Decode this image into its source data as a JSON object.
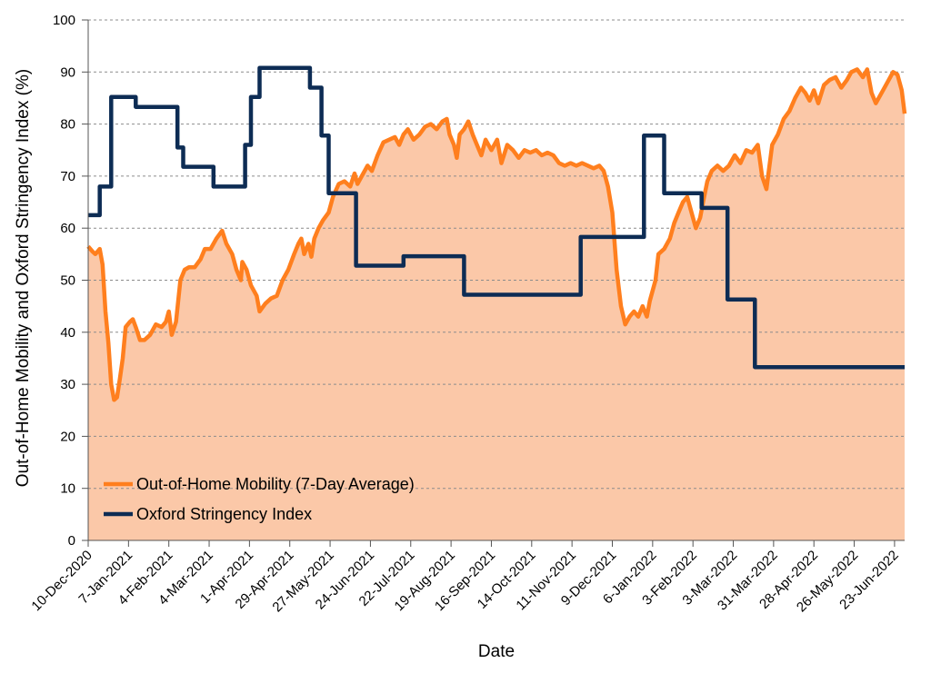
{
  "chart_data": {
    "type": "line",
    "xlabel": "Date",
    "ylabel": "Out-of-Home Mobility and Oxford Stringency Index (%)",
    "ylim": [
      0,
      100
    ],
    "yticks": [
      0,
      10,
      20,
      30,
      40,
      50,
      60,
      70,
      80,
      90,
      100
    ],
    "x_range": [
      "2020-12-10",
      "2022-06-30"
    ],
    "x_tick_labels": [
      "10-Dec-2020",
      "7-Jan-2021",
      "4-Feb-2021",
      "4-Mar-2021",
      "1-Apr-2021",
      "29-Apr-2021",
      "27-May-2021",
      "24-Jun-2021",
      "22-Jul-2021",
      "19-Aug-2021",
      "16-Sep-2021",
      "14-Oct-2021",
      "11-Nov-2021",
      "9-Dec-2021",
      "6-Jan-2022",
      "3-Feb-2022",
      "3-Mar-2022",
      "31-Mar-2022",
      "28-Apr-2022",
      "26-May-2022",
      "23-Jun-2022"
    ],
    "x_tick_dates": [
      "2020-12-10",
      "2021-01-07",
      "2021-02-04",
      "2021-03-04",
      "2021-04-01",
      "2021-04-29",
      "2021-05-27",
      "2021-06-24",
      "2021-07-22",
      "2021-08-19",
      "2021-09-16",
      "2021-10-14",
      "2021-11-11",
      "2021-12-09",
      "2022-01-06",
      "2022-02-03",
      "2022-03-03",
      "2022-03-31",
      "2022-04-28",
      "2022-05-26",
      "2022-06-23"
    ],
    "grid": "horizontal dashed",
    "legend_position": "bottom-left",
    "series": [
      {
        "name": "Out-of-Home Mobility (7-Day Average)",
        "color": "#FF7F1E",
        "fill": "#FBC8A8",
        "points": [
          [
            "2020-12-10",
            56.5
          ],
          [
            "2020-12-13",
            55.5
          ],
          [
            "2020-12-15",
            55.0
          ],
          [
            "2020-12-18",
            56.0
          ],
          [
            "2020-12-20",
            53.0
          ],
          [
            "2020-12-22",
            44.0
          ],
          [
            "2020-12-24",
            38.0
          ],
          [
            "2020-12-26",
            30.0
          ],
          [
            "2020-12-28",
            27.0
          ],
          [
            "2020-12-30",
            27.5
          ],
          [
            "2021-01-01",
            31.0
          ],
          [
            "2021-01-03",
            35.0
          ],
          [
            "2021-01-05",
            41.0
          ],
          [
            "2021-01-08",
            42.0
          ],
          [
            "2021-01-10",
            42.5
          ],
          [
            "2021-01-12",
            41.0
          ],
          [
            "2021-01-15",
            38.5
          ],
          [
            "2021-01-18",
            38.5
          ],
          [
            "2021-01-22",
            39.5
          ],
          [
            "2021-01-26",
            41.5
          ],
          [
            "2021-01-30",
            41.0
          ],
          [
            "2021-02-02",
            42.0
          ],
          [
            "2021-02-04",
            44.0
          ],
          [
            "2021-02-06",
            39.5
          ],
          [
            "2021-02-09",
            42.0
          ],
          [
            "2021-02-12",
            50.0
          ],
          [
            "2021-02-15",
            52.0
          ],
          [
            "2021-02-18",
            52.5
          ],
          [
            "2021-02-22",
            52.5
          ],
          [
            "2021-02-26",
            54.0
          ],
          [
            "2021-03-01",
            56.0
          ],
          [
            "2021-03-05",
            56.0
          ],
          [
            "2021-03-09",
            58.0
          ],
          [
            "2021-03-13",
            59.5
          ],
          [
            "2021-03-16",
            57.0
          ],
          [
            "2021-03-20",
            55.0
          ],
          [
            "2021-03-23",
            52.0
          ],
          [
            "2021-03-26",
            50.0
          ],
          [
            "2021-03-27",
            53.5
          ],
          [
            "2021-03-30",
            52.0
          ],
          [
            "2021-04-02",
            49.0
          ],
          [
            "2021-04-06",
            47.0
          ],
          [
            "2021-04-08",
            44.0
          ],
          [
            "2021-04-12",
            45.5
          ],
          [
            "2021-04-16",
            46.5
          ],
          [
            "2021-04-20",
            47.0
          ],
          [
            "2021-04-24",
            50.0
          ],
          [
            "2021-04-28",
            52.0
          ],
          [
            "2021-05-02",
            55.0
          ],
          [
            "2021-05-05",
            57.0
          ],
          [
            "2021-05-07",
            58.0
          ],
          [
            "2021-05-09",
            55.0
          ],
          [
            "2021-05-12",
            57.0
          ],
          [
            "2021-05-14",
            54.5
          ],
          [
            "2021-05-16",
            58.0
          ],
          [
            "2021-05-19",
            60.0
          ],
          [
            "2021-05-22",
            61.5
          ],
          [
            "2021-05-26",
            63.0
          ],
          [
            "2021-05-29",
            66.0
          ],
          [
            "2021-06-02",
            68.5
          ],
          [
            "2021-06-06",
            69.0
          ],
          [
            "2021-06-10",
            68.0
          ],
          [
            "2021-06-13",
            70.5
          ],
          [
            "2021-06-15",
            68.5
          ],
          [
            "2021-06-18",
            70.0
          ],
          [
            "2021-06-22",
            72.0
          ],
          [
            "2021-06-25",
            71.0
          ],
          [
            "2021-06-29",
            74.0
          ],
          [
            "2021-07-03",
            76.5
          ],
          [
            "2021-07-07",
            77.0
          ],
          [
            "2021-07-11",
            77.5
          ],
          [
            "2021-07-14",
            76.0
          ],
          [
            "2021-07-17",
            78.0
          ],
          [
            "2021-07-20",
            79.0
          ],
          [
            "2021-07-24",
            77.0
          ],
          [
            "2021-07-28",
            78.0
          ],
          [
            "2021-08-01",
            79.5
          ],
          [
            "2021-08-05",
            80.0
          ],
          [
            "2021-08-09",
            79.0
          ],
          [
            "2021-08-13",
            80.5
          ],
          [
            "2021-08-16",
            81.0
          ],
          [
            "2021-08-18",
            78.0
          ],
          [
            "2021-08-21",
            76.0
          ],
          [
            "2021-08-23",
            73.5
          ],
          [
            "2021-08-25",
            78.0
          ],
          [
            "2021-08-28",
            79.0
          ],
          [
            "2021-08-31",
            80.5
          ],
          [
            "2021-09-03",
            78.0
          ],
          [
            "2021-09-06",
            76.0
          ],
          [
            "2021-09-09",
            74.0
          ],
          [
            "2021-09-12",
            77.0
          ],
          [
            "2021-09-16",
            75.0
          ],
          [
            "2021-09-20",
            77.0
          ],
          [
            "2021-09-23",
            72.5
          ],
          [
            "2021-09-27",
            76.0
          ],
          [
            "2021-10-01",
            75.0
          ],
          [
            "2021-10-05",
            73.5
          ],
          [
            "2021-10-09",
            75.0
          ],
          [
            "2021-10-13",
            74.5
          ],
          [
            "2021-10-17",
            75.0
          ],
          [
            "2021-10-21",
            74.0
          ],
          [
            "2021-10-25",
            74.5
          ],
          [
            "2021-10-29",
            74.0
          ],
          [
            "2021-11-02",
            72.5
          ],
          [
            "2021-11-06",
            72.0
          ],
          [
            "2021-11-10",
            72.5
          ],
          [
            "2021-11-14",
            72.0
          ],
          [
            "2021-11-18",
            72.5
          ],
          [
            "2021-11-22",
            72.0
          ],
          [
            "2021-11-26",
            71.5
          ],
          [
            "2021-11-30",
            72.0
          ],
          [
            "2021-12-03",
            71.0
          ],
          [
            "2021-12-06",
            68.0
          ],
          [
            "2021-12-09",
            63.0
          ],
          [
            "2021-12-12",
            52.0
          ],
          [
            "2021-12-15",
            45.0
          ],
          [
            "2021-12-18",
            41.5
          ],
          [
            "2021-12-21",
            43.0
          ],
          [
            "2021-12-24",
            44.0
          ],
          [
            "2021-12-27",
            43.0
          ],
          [
            "2021-12-30",
            45.0
          ],
          [
            "2022-01-02",
            43.0
          ],
          [
            "2022-01-04",
            46.0
          ],
          [
            "2022-01-08",
            50.0
          ],
          [
            "2022-01-10",
            55.0
          ],
          [
            "2022-01-14",
            56.0
          ],
          [
            "2022-01-18",
            58.0
          ],
          [
            "2022-01-21",
            61.0
          ],
          [
            "2022-01-24",
            63.0
          ],
          [
            "2022-01-27",
            65.0
          ],
          [
            "2022-01-30",
            66.0
          ],
          [
            "2022-02-02",
            63.0
          ],
          [
            "2022-02-05",
            60.0
          ],
          [
            "2022-02-08",
            62.0
          ],
          [
            "2022-02-10",
            65.0
          ],
          [
            "2022-02-13",
            69.0
          ],
          [
            "2022-02-16",
            71.0
          ],
          [
            "2022-02-20",
            72.0
          ],
          [
            "2022-02-24",
            71.0
          ],
          [
            "2022-02-28",
            72.0
          ],
          [
            "2022-03-04",
            74.0
          ],
          [
            "2022-03-08",
            72.5
          ],
          [
            "2022-03-12",
            75.0
          ],
          [
            "2022-03-16",
            74.5
          ],
          [
            "2022-03-20",
            76.0
          ],
          [
            "2022-03-23",
            70.0
          ],
          [
            "2022-03-26",
            67.5
          ],
          [
            "2022-03-30",
            76.0
          ],
          [
            "2022-04-03",
            78.0
          ],
          [
            "2022-04-07",
            81.0
          ],
          [
            "2022-04-11",
            82.5
          ],
          [
            "2022-04-15",
            85.0
          ],
          [
            "2022-04-19",
            87.0
          ],
          [
            "2022-04-22",
            86.0
          ],
          [
            "2022-04-25",
            84.5
          ],
          [
            "2022-04-28",
            86.5
          ],
          [
            "2022-05-01",
            84.0
          ],
          [
            "2022-05-05",
            87.5
          ],
          [
            "2022-05-09",
            88.5
          ],
          [
            "2022-05-13",
            89.0
          ],
          [
            "2022-05-17",
            87.0
          ],
          [
            "2022-05-21",
            88.5
          ],
          [
            "2022-05-24",
            90.0
          ],
          [
            "2022-05-28",
            90.5
          ],
          [
            "2022-06-01",
            89.0
          ],
          [
            "2022-06-04",
            90.5
          ],
          [
            "2022-06-07",
            86.0
          ],
          [
            "2022-06-10",
            84.0
          ],
          [
            "2022-06-14",
            86.0
          ],
          [
            "2022-06-18",
            88.0
          ],
          [
            "2022-06-22",
            90.0
          ],
          [
            "2022-06-25",
            89.5
          ],
          [
            "2022-06-28",
            86.5
          ],
          [
            "2022-06-30",
            82.0
          ]
        ]
      },
      {
        "name": "Oxford Stringency Index",
        "color": "#0D2C54",
        "points": [
          [
            "2020-12-10",
            62.5
          ],
          [
            "2020-12-18",
            62.5
          ],
          [
            "2020-12-18",
            68.0
          ],
          [
            "2020-12-26",
            68.0
          ],
          [
            "2020-12-26",
            85.2
          ],
          [
            "2021-01-12",
            85.2
          ],
          [
            "2021-01-12",
            83.3
          ],
          [
            "2021-02-10",
            83.3
          ],
          [
            "2021-02-10",
            75.5
          ],
          [
            "2021-02-14",
            75.5
          ],
          [
            "2021-02-14",
            71.8
          ],
          [
            "2021-03-07",
            71.8
          ],
          [
            "2021-03-07",
            68.0
          ],
          [
            "2021-03-29",
            68.0
          ],
          [
            "2021-03-29",
            76.0
          ],
          [
            "2021-04-02",
            76.0
          ],
          [
            "2021-04-02",
            85.2
          ],
          [
            "2021-04-08",
            85.2
          ],
          [
            "2021-04-08",
            90.8
          ],
          [
            "2021-05-13",
            90.8
          ],
          [
            "2021-05-13",
            87.0
          ],
          [
            "2021-05-21",
            87.0
          ],
          [
            "2021-05-21",
            77.8
          ],
          [
            "2021-05-26",
            77.8
          ],
          [
            "2021-05-26",
            66.7
          ],
          [
            "2021-06-14",
            66.7
          ],
          [
            "2021-06-14",
            52.8
          ],
          [
            "2021-07-17",
            52.8
          ],
          [
            "2021-07-17",
            54.6
          ],
          [
            "2021-08-28",
            54.6
          ],
          [
            "2021-08-28",
            47.2
          ],
          [
            "2021-11-17",
            47.2
          ],
          [
            "2021-11-17",
            58.3
          ],
          [
            "2021-12-31",
            58.3
          ],
          [
            "2021-12-31",
            77.8
          ],
          [
            "2022-01-14",
            77.8
          ],
          [
            "2022-01-14",
            66.7
          ],
          [
            "2022-02-09",
            66.7
          ],
          [
            "2022-02-09",
            63.9
          ],
          [
            "2022-02-27",
            63.9
          ],
          [
            "2022-02-27",
            46.3
          ],
          [
            "2022-03-18",
            46.3
          ],
          [
            "2022-03-18",
            33.3
          ],
          [
            "2022-06-30",
            33.3
          ]
        ]
      }
    ]
  }
}
